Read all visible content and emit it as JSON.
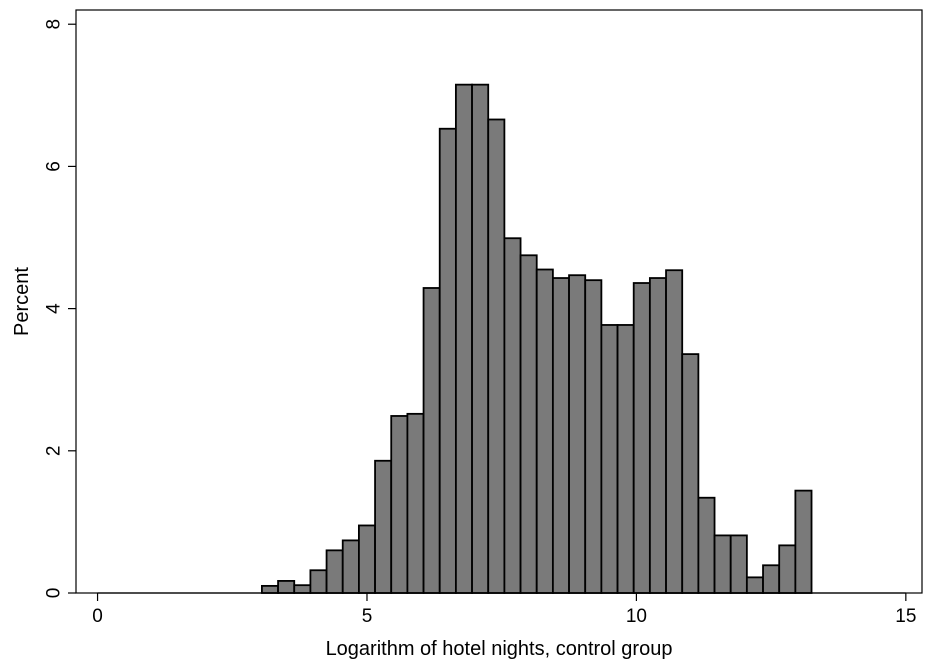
{
  "chart_data": {
    "type": "bar",
    "xlabel": "Logarithm of hotel nights, control group",
    "ylabel": "Percent",
    "xlim": [
      -0.4,
      15.3
    ],
    "ylim": [
      0,
      8.2
    ],
    "xticks": [
      0,
      5,
      10,
      15
    ],
    "yticks": [
      0,
      2,
      4,
      6,
      8
    ],
    "grid": false,
    "bin_width": 0.3,
    "bar_color": "#7a7a7a",
    "edge_color": "#000000",
    "bins": [
      {
        "x0": 3.05,
        "x1": 3.35,
        "value": 0.1
      },
      {
        "x0": 3.35,
        "x1": 3.65,
        "value": 0.17
      },
      {
        "x0": 3.65,
        "x1": 3.95,
        "value": 0.11
      },
      {
        "x0": 3.95,
        "x1": 4.25,
        "value": 0.32
      },
      {
        "x0": 4.25,
        "x1": 4.55,
        "value": 0.6
      },
      {
        "x0": 4.55,
        "x1": 4.85,
        "value": 0.74
      },
      {
        "x0": 4.85,
        "x1": 5.15,
        "value": 0.95
      },
      {
        "x0": 5.15,
        "x1": 5.45,
        "value": 1.86
      },
      {
        "x0": 5.45,
        "x1": 5.75,
        "value": 2.49
      },
      {
        "x0": 5.75,
        "x1": 6.05,
        "value": 2.52
      },
      {
        "x0": 6.05,
        "x1": 6.35,
        "value": 4.29
      },
      {
        "x0": 6.35,
        "x1": 6.65,
        "value": 6.53
      },
      {
        "x0": 6.65,
        "x1": 6.95,
        "value": 7.15
      },
      {
        "x0": 6.95,
        "x1": 7.25,
        "value": 7.15
      },
      {
        "x0": 7.25,
        "x1": 7.55,
        "value": 6.66
      },
      {
        "x0": 7.55,
        "x1": 7.85,
        "value": 4.99
      },
      {
        "x0": 7.85,
        "x1": 8.15,
        "value": 4.75
      },
      {
        "x0": 8.15,
        "x1": 8.45,
        "value": 4.55
      },
      {
        "x0": 8.45,
        "x1": 8.75,
        "value": 4.43
      },
      {
        "x0": 8.75,
        "x1": 9.05,
        "value": 4.47
      },
      {
        "x0": 9.05,
        "x1": 9.35,
        "value": 4.4
      },
      {
        "x0": 9.35,
        "x1": 9.65,
        "value": 3.77
      },
      {
        "x0": 9.65,
        "x1": 9.95,
        "value": 3.77
      },
      {
        "x0": 9.95,
        "x1": 10.25,
        "value": 4.36
      },
      {
        "x0": 10.25,
        "x1": 10.55,
        "value": 4.43
      },
      {
        "x0": 10.55,
        "x1": 10.85,
        "value": 4.54
      },
      {
        "x0": 10.85,
        "x1": 11.15,
        "value": 3.36
      },
      {
        "x0": 11.15,
        "x1": 11.45,
        "value": 1.34
      },
      {
        "x0": 11.45,
        "x1": 11.75,
        "value": 0.81
      },
      {
        "x0": 11.75,
        "x1": 12.05,
        "value": 0.81
      },
      {
        "x0": 12.05,
        "x1": 12.35,
        "value": 0.22
      },
      {
        "x0": 12.35,
        "x1": 12.65,
        "value": 0.39
      },
      {
        "x0": 12.65,
        "x1": 12.95,
        "value": 0.67
      },
      {
        "x0": 12.95,
        "x1": 13.25,
        "value": 1.44
      }
    ]
  }
}
